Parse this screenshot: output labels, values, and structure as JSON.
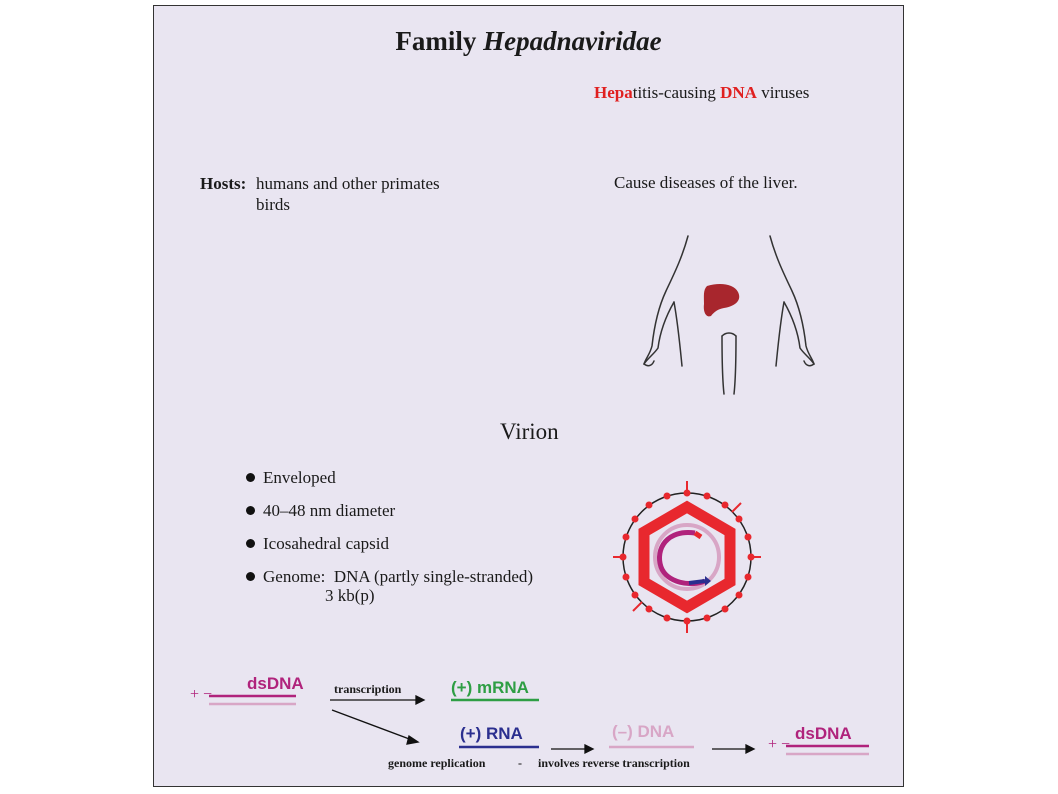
{
  "title": {
    "prefix": "Family ",
    "italic": "Hepadnaviridae"
  },
  "subtitle": {
    "part1": "Hepa",
    "part2": "titis-causing ",
    "part3": "DNA",
    "part4": " viruses"
  },
  "hosts": {
    "label": "Hosts:",
    "line1": "humans and other primates",
    "line2": "birds"
  },
  "disease_text": "Cause diseases of the liver.",
  "virion": {
    "title": "Virion",
    "properties": [
      "Enveloped",
      "40–48 nm diameter",
      "Icosahedral capsid"
    ],
    "genome_label": "Genome:",
    "genome_line1": "DNA (partly single-stranded)",
    "genome_line2": "3 kb(p)"
  },
  "replication": {
    "start_genome": "dsDNA",
    "start_strands": "+ −",
    "transcription_label": "transcription",
    "mrna": "(+) mRNA",
    "rna": "(+) RNA",
    "minus_dna": "(–) DNA",
    "end_genome": "dsDNA",
    "end_strands": "+ −",
    "footer_left": "genome replication",
    "footer_dash": "-",
    "footer_right": "involves reverse transcription"
  },
  "colors": {
    "dsdna": "#b0237c",
    "dsdna_light": "#d8a6c6",
    "mrna": "#2e9e44",
    "rna": "#2b2f8f",
    "minus_dna": "#d8a6c6",
    "liver": "#a8262d",
    "capsid": "#e8282e",
    "highlight_red": "#e02020"
  }
}
